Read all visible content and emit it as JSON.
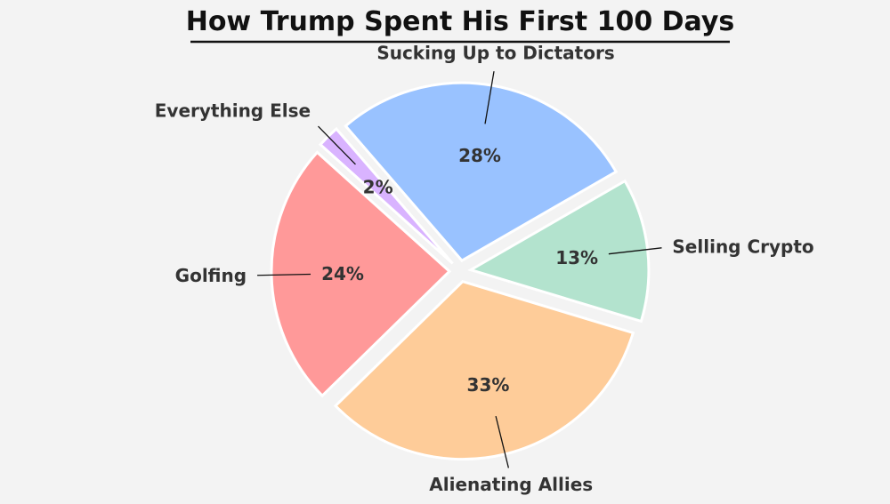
{
  "chart_data": {
    "type": "pie",
    "title": "How Trump Spent His First 100 Days",
    "start_angle_deg": 30,
    "direction": "clockwise",
    "slices": [
      {
        "label": "Selling Crypto",
        "value": 13,
        "pct_label": "13%",
        "color": "#b3e3ce"
      },
      {
        "label": "Alienating Allies",
        "value": 33,
        "pct_label": "33%",
        "color": "#fecc99"
      },
      {
        "label": "Golfing",
        "value": 24,
        "pct_label": "24%",
        "color": "#ff9999"
      },
      {
        "label": "Everything Else",
        "value": 2,
        "pct_label": "2%",
        "color": "#d9b3ff"
      },
      {
        "label": "Sucking Up to Dictators",
        "value": 28,
        "pct_label": "28%",
        "color": "#99c2ff"
      }
    ]
  }
}
